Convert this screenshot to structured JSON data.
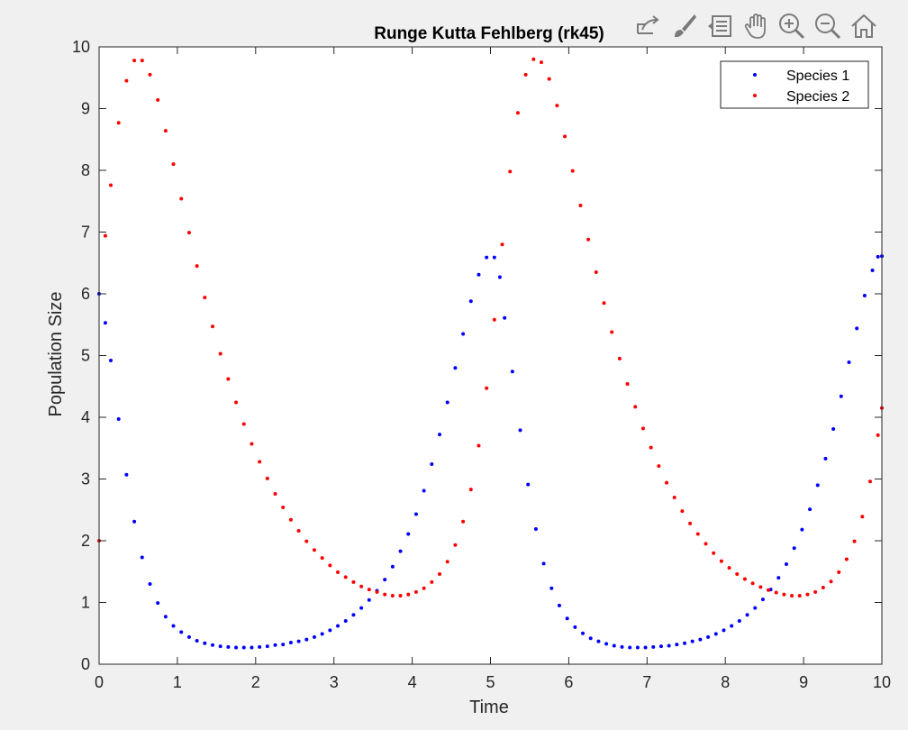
{
  "toolbar": {
    "icons": [
      "export-icon",
      "brush-icon",
      "legend-icon",
      "pan-icon",
      "zoom-in-icon",
      "zoom-out-icon",
      "home-icon"
    ]
  },
  "chart_data": {
    "type": "scatter",
    "title": "Runge Kutta Fehlberg (rk45)",
    "xlabel": "Time",
    "ylabel": "Population Size",
    "xlim": [
      0,
      10
    ],
    "ylim": [
      0,
      10
    ],
    "xticks": [
      0,
      1,
      2,
      3,
      4,
      5,
      6,
      7,
      8,
      9,
      10
    ],
    "yticks": [
      0,
      1,
      2,
      3,
      4,
      5,
      6,
      7,
      8,
      9,
      10
    ],
    "grid": false,
    "legend_position": "top-right",
    "series": [
      {
        "name": "Species 1",
        "color": "#0000ff",
        "points": [
          [
            0,
            6
          ],
          [
            0.08,
            5.53
          ],
          [
            0.15,
            4.92
          ],
          [
            0.25,
            3.97
          ],
          [
            0.35,
            3.07
          ],
          [
            0.45,
            2.31
          ],
          [
            0.55,
            1.73
          ],
          [
            0.65,
            1.3
          ],
          [
            0.75,
            0.99
          ],
          [
            0.85,
            0.77
          ],
          [
            0.95,
            0.62
          ],
          [
            1.05,
            0.52
          ],
          [
            1.15,
            0.44
          ],
          [
            1.25,
            0.38
          ],
          [
            1.35,
            0.34
          ],
          [
            1.45,
            0.31
          ],
          [
            1.55,
            0.29
          ],
          [
            1.65,
            0.28
          ],
          [
            1.75,
            0.27
          ],
          [
            1.85,
            0.27
          ],
          [
            1.95,
            0.27
          ],
          [
            2.05,
            0.28
          ],
          [
            2.15,
            0.29
          ],
          [
            2.25,
            0.31
          ],
          [
            2.35,
            0.32
          ],
          [
            2.45,
            0.35
          ],
          [
            2.55,
            0.37
          ],
          [
            2.65,
            0.4
          ],
          [
            2.75,
            0.44
          ],
          [
            2.85,
            0.49
          ],
          [
            2.95,
            0.55
          ],
          [
            3.05,
            0.62
          ],
          [
            3.15,
            0.7
          ],
          [
            3.25,
            0.8
          ],
          [
            3.35,
            0.91
          ],
          [
            3.45,
            1.04
          ],
          [
            3.55,
            1.19
          ],
          [
            3.65,
            1.37
          ],
          [
            3.75,
            1.58
          ],
          [
            3.85,
            1.83
          ],
          [
            3.95,
            2.11
          ],
          [
            4.05,
            2.43
          ],
          [
            4.15,
            2.81
          ],
          [
            4.25,
            3.24
          ],
          [
            4.35,
            3.72
          ],
          [
            4.45,
            4.24
          ],
          [
            4.55,
            4.8
          ],
          [
            4.65,
            5.35
          ],
          [
            4.75,
            5.88
          ],
          [
            4.85,
            6.31
          ],
          [
            4.95,
            6.59
          ],
          [
            5.05,
            6.59
          ],
          [
            5.12,
            6.27
          ],
          [
            5.18,
            5.61
          ],
          [
            5.28,
            4.74
          ],
          [
            5.38,
            3.79
          ],
          [
            5.48,
            2.91
          ],
          [
            5.58,
            2.19
          ],
          [
            5.68,
            1.63
          ],
          [
            5.78,
            1.23
          ],
          [
            5.88,
            0.95
          ],
          [
            5.98,
            0.74
          ],
          [
            6.08,
            0.6
          ],
          [
            6.18,
            0.5
          ],
          [
            6.28,
            0.42
          ],
          [
            6.38,
            0.37
          ],
          [
            6.48,
            0.33
          ],
          [
            6.58,
            0.3
          ],
          [
            6.68,
            0.28
          ],
          [
            6.78,
            0.27
          ],
          [
            6.88,
            0.27
          ],
          [
            6.98,
            0.27
          ],
          [
            7.08,
            0.28
          ],
          [
            7.18,
            0.29
          ],
          [
            7.28,
            0.3
          ],
          [
            7.38,
            0.32
          ],
          [
            7.48,
            0.34
          ],
          [
            7.58,
            0.37
          ],
          [
            7.68,
            0.4
          ],
          [
            7.78,
            0.44
          ],
          [
            7.88,
            0.49
          ],
          [
            7.98,
            0.55
          ],
          [
            8.08,
            0.62
          ],
          [
            8.18,
            0.7
          ],
          [
            8.28,
            0.8
          ],
          [
            8.38,
            0.91
          ],
          [
            8.48,
            1.05
          ],
          [
            8.58,
            1.21
          ],
          [
            8.68,
            1.4
          ],
          [
            8.78,
            1.62
          ],
          [
            8.88,
            1.88
          ],
          [
            8.98,
            2.18
          ],
          [
            9.08,
            2.51
          ],
          [
            9.18,
            2.9
          ],
          [
            9.28,
            3.33
          ],
          [
            9.38,
            3.81
          ],
          [
            9.48,
            4.34
          ],
          [
            9.58,
            4.89
          ],
          [
            9.68,
            5.44
          ],
          [
            9.78,
            5.97
          ],
          [
            9.88,
            6.38
          ],
          [
            9.95,
            6.6
          ],
          [
            10,
            6.61
          ]
        ]
      },
      {
        "name": "Species 2",
        "color": "#ff0000",
        "points": [
          [
            0,
            2
          ],
          [
            0.08,
            6.94
          ],
          [
            0.15,
            7.76
          ],
          [
            0.25,
            8.77
          ],
          [
            0.35,
            9.45
          ],
          [
            0.45,
            9.78
          ],
          [
            0.55,
            9.78
          ],
          [
            0.65,
            9.55
          ],
          [
            0.75,
            9.14
          ],
          [
            0.85,
            8.64
          ],
          [
            0.95,
            8.1
          ],
          [
            1.05,
            7.54
          ],
          [
            1.15,
            6.99
          ],
          [
            1.25,
            6.45
          ],
          [
            1.35,
            5.94
          ],
          [
            1.45,
            5.47
          ],
          [
            1.55,
            5.03
          ],
          [
            1.65,
            4.62
          ],
          [
            1.75,
            4.24
          ],
          [
            1.85,
            3.89
          ],
          [
            1.95,
            3.57
          ],
          [
            2.05,
            3.28
          ],
          [
            2.15,
            3.01
          ],
          [
            2.25,
            2.76
          ],
          [
            2.35,
            2.54
          ],
          [
            2.45,
            2.34
          ],
          [
            2.55,
            2.16
          ],
          [
            2.65,
            1.99
          ],
          [
            2.75,
            1.85
          ],
          [
            2.85,
            1.72
          ],
          [
            2.95,
            1.6
          ],
          [
            3.05,
            1.49
          ],
          [
            3.15,
            1.41
          ],
          [
            3.25,
            1.33
          ],
          [
            3.35,
            1.26
          ],
          [
            3.45,
            1.21
          ],
          [
            3.55,
            1.17
          ],
          [
            3.65,
            1.13
          ],
          [
            3.75,
            1.11
          ],
          [
            3.85,
            1.11
          ],
          [
            3.95,
            1.13
          ],
          [
            4.05,
            1.17
          ],
          [
            4.15,
            1.23
          ],
          [
            4.25,
            1.33
          ],
          [
            4.35,
            1.46
          ],
          [
            4.45,
            1.66
          ],
          [
            4.55,
            1.93
          ],
          [
            4.65,
            2.31
          ],
          [
            4.75,
            2.83
          ],
          [
            4.85,
            3.54
          ],
          [
            4.95,
            4.47
          ],
          [
            5.05,
            5.58
          ],
          [
            5.15,
            6.8
          ],
          [
            5.25,
            7.98
          ],
          [
            5.35,
            8.93
          ],
          [
            5.45,
            9.55
          ],
          [
            5.55,
            9.8
          ],
          [
            5.65,
            9.75
          ],
          [
            5.75,
            9.48
          ],
          [
            5.85,
            9.05
          ],
          [
            5.95,
            8.55
          ],
          [
            6.05,
            7.99
          ],
          [
            6.15,
            7.43
          ],
          [
            6.25,
            6.88
          ],
          [
            6.35,
            6.35
          ],
          [
            6.45,
            5.85
          ],
          [
            6.55,
            5.38
          ],
          [
            6.65,
            4.95
          ],
          [
            6.75,
            4.54
          ],
          [
            6.85,
            4.17
          ],
          [
            6.95,
            3.82
          ],
          [
            7.05,
            3.51
          ],
          [
            7.15,
            3.21
          ],
          [
            7.25,
            2.94
          ],
          [
            7.35,
            2.7
          ],
          [
            7.45,
            2.48
          ],
          [
            7.55,
            2.28
          ],
          [
            7.65,
            2.11
          ],
          [
            7.75,
            1.95
          ],
          [
            7.85,
            1.8
          ],
          [
            7.95,
            1.67
          ],
          [
            8.05,
            1.56
          ],
          [
            8.15,
            1.46
          ],
          [
            8.25,
            1.38
          ],
          [
            8.35,
            1.31
          ],
          [
            8.45,
            1.25
          ],
          [
            8.55,
            1.2
          ],
          [
            8.65,
            1.16
          ],
          [
            8.75,
            1.13
          ],
          [
            8.85,
            1.11
          ],
          [
            8.95,
            1.11
          ],
          [
            9.05,
            1.13
          ],
          [
            9.15,
            1.17
          ],
          [
            9.25,
            1.24
          ],
          [
            9.35,
            1.34
          ],
          [
            9.45,
            1.49
          ],
          [
            9.55,
            1.7
          ],
          [
            9.65,
            1.99
          ],
          [
            9.75,
            2.39
          ],
          [
            9.85,
            2.96
          ],
          [
            9.95,
            3.71
          ],
          [
            10,
            4.15
          ]
        ]
      }
    ]
  }
}
